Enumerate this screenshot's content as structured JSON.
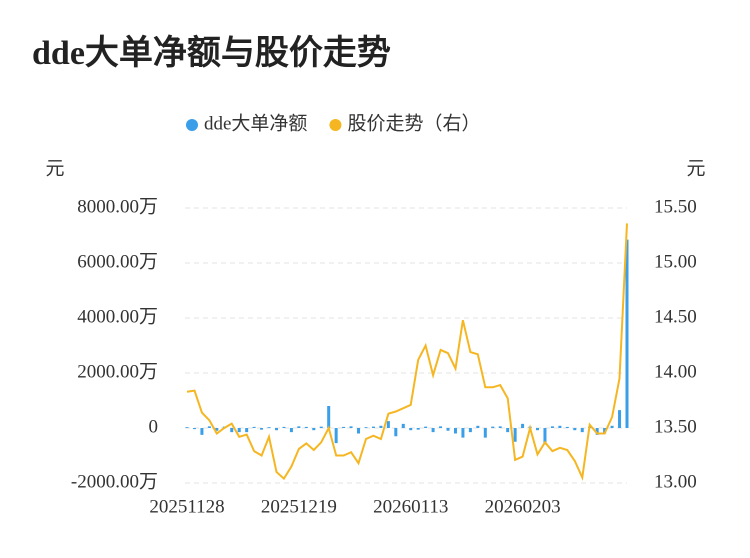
{
  "chart_data": {
    "type": "bar-line",
    "title": "dde大单净额与股价走势",
    "y_label": "元",
    "y2_label": "元",
    "categories": [
      "20251128",
      null,
      null,
      null,
      null,
      null,
      null,
      null,
      null,
      null,
      null,
      null,
      null,
      null,
      null,
      "20251219",
      null,
      null,
      null,
      null,
      null,
      null,
      null,
      null,
      null,
      null,
      null,
      null,
      null,
      null,
      "20260113",
      null,
      null,
      null,
      null,
      null,
      null,
      null,
      null,
      null,
      null,
      null,
      null,
      null,
      null,
      "20260203",
      null,
      null,
      null,
      null,
      null,
      null,
      null,
      null,
      null,
      null,
      null,
      null,
      null,
      null
    ],
    "series": [
      {
        "name": "dde大单净额",
        "color": "#3a9ee8",
        "type": "bar",
        "values": [
          30,
          -40,
          -250,
          60,
          -100,
          50,
          -150,
          -150,
          -150,
          40,
          -60,
          30,
          -80,
          40,
          -150,
          60,
          40,
          -80,
          50,
          800,
          -550,
          40,
          60,
          -200,
          30,
          50,
          80,
          250,
          -300,
          150,
          -80,
          -60,
          50,
          -150,
          60,
          -100,
          -200,
          -350,
          -150,
          80,
          -350,
          50,
          60,
          -150,
          -500,
          150,
          50,
          -80,
          -600,
          60,
          80,
          40,
          -80,
          -150,
          50,
          -250,
          -200,
          80,
          650,
          6850
        ]
      },
      {
        "name": "股价走势（右）",
        "color": "#f5b622",
        "type": "line",
        "axis": "y2",
        "values": [
          13.83,
          13.84,
          13.64,
          13.57,
          13.45,
          13.5,
          13.54,
          13.42,
          13.44,
          13.29,
          13.25,
          13.42,
          13.1,
          13.04,
          13.15,
          13.31,
          13.36,
          13.3,
          13.37,
          13.5,
          13.25,
          13.25,
          13.28,
          13.18,
          13.4,
          13.43,
          13.4,
          13.63,
          13.65,
          13.68,
          13.71,
          14.12,
          14.25,
          13.98,
          14.21,
          14.18,
          14.04,
          14.48,
          14.19,
          14.17,
          13.87,
          13.87,
          13.89,
          13.77,
          13.21,
          13.24,
          13.5,
          13.26,
          13.37,
          13.29,
          13.32,
          13.3,
          13.2,
          13.05,
          13.53,
          13.45,
          13.45,
          13.6,
          13.95,
          15.36
        ]
      }
    ],
    "ylim": [
      -2000,
      8000
    ],
    "yticks": [
      {
        "value": -2000,
        "label": "-2000.00万"
      },
      0,
      {
        "value": 2000,
        "label": "2000.00万"
      },
      {
        "value": 4000,
        "label": "4000.00万"
      },
      {
        "value": 6000,
        "label": "6000.00万"
      },
      {
        "value": 8000,
        "label": "8000.00万"
      }
    ],
    "y2lim": [
      13.0,
      15.5
    ],
    "y2ticks": [
      {
        "value": 13.0,
        "label": "13.00"
      },
      {
        "value": 13.5,
        "label": "13.50"
      },
      {
        "value": 14.0,
        "label": "14.00"
      },
      {
        "value": 14.5,
        "label": "14.50"
      },
      {
        "value": 15.0,
        "label": "15.00"
      },
      {
        "value": 15.5,
        "label": "15.50"
      }
    ],
    "grid": true,
    "legend": "top"
  }
}
